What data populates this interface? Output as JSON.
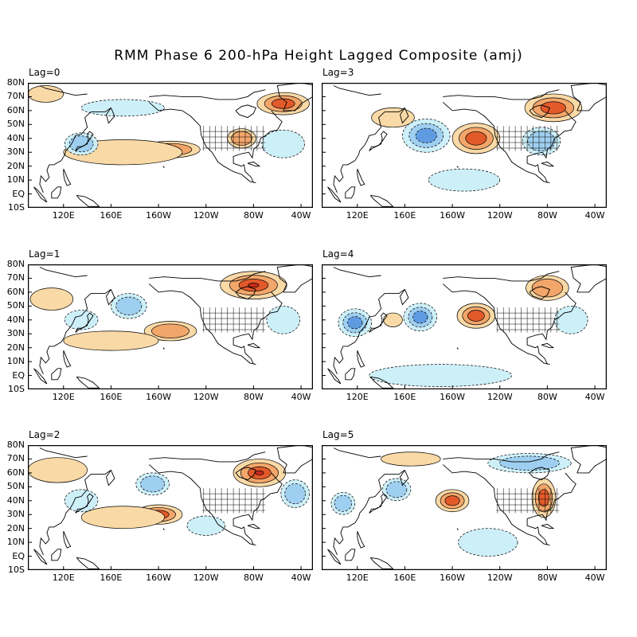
{
  "title": "RMM Phase 6 200-hPa Height Lagged Composite (amj)",
  "colors": {
    "positive_light": "#f9d9a6",
    "positive_mid": "#f2a66a",
    "positive_strong": "#e35a2a",
    "positive_max": "#c8291a",
    "negative_light": "#cdeff8",
    "negative_mid": "#9fcff0",
    "negative_strong": "#5f9be0",
    "land_outline": "#000000"
  },
  "latitude_labels": [
    "80N",
    "70N",
    "60N",
    "50N",
    "40N",
    "30N",
    "20N",
    "10N",
    "EQ",
    "10S"
  ],
  "longitude_labels": [
    "120E",
    "160E",
    "160W",
    "120W",
    "80W",
    "40W"
  ],
  "panels": [
    {
      "id": "lag0",
      "label": "Lag=0",
      "anomalies": [
        {
          "sign": "pos",
          "level": 3,
          "lon": -55,
          "lat": 65,
          "rx": 22,
          "ry": 8
        },
        {
          "sign": "pos",
          "level": 2,
          "lon": -90,
          "lat": 40,
          "rx": 12,
          "ry": 7
        },
        {
          "sign": "pos",
          "level": 2,
          "lon": -150,
          "lat": 32,
          "rx": 25,
          "ry": 6
        },
        {
          "sign": "pos",
          "level": 1,
          "lon": 170,
          "lat": 30,
          "rx": 50,
          "ry": 9
        },
        {
          "sign": "pos",
          "level": 1,
          "lon": 105,
          "lat": 72,
          "rx": 15,
          "ry": 6
        },
        {
          "sign": "neg",
          "level": 2,
          "lon": 135,
          "lat": 36,
          "rx": 14,
          "ry": 8
        },
        {
          "sign": "neg",
          "level": 1,
          "lon": -55,
          "lat": 36,
          "rx": 18,
          "ry": 10
        },
        {
          "sign": "neg",
          "level": 1,
          "lon": 170,
          "lat": 62,
          "rx": 35,
          "ry": 6
        }
      ]
    },
    {
      "id": "lag3",
      "label": "Lag=3",
      "anomalies": [
        {
          "sign": "pos",
          "level": 3,
          "lon": -140,
          "lat": 40,
          "rx": 20,
          "ry": 11
        },
        {
          "sign": "pos",
          "level": 3,
          "lon": -75,
          "lat": 62,
          "rx": 24,
          "ry": 10
        },
        {
          "sign": "pos",
          "level": 1,
          "lon": 150,
          "lat": 55,
          "rx": 18,
          "ry": 7
        },
        {
          "sign": "neg",
          "level": 3,
          "lon": 178,
          "lat": 42,
          "rx": 20,
          "ry": 12
        },
        {
          "sign": "neg",
          "level": 2,
          "lon": -85,
          "lat": 38,
          "rx": 16,
          "ry": 10
        },
        {
          "sign": "neg",
          "level": 1,
          "lon": -150,
          "lat": 10,
          "rx": 30,
          "ry": 8
        }
      ]
    },
    {
      "id": "lag1",
      "label": "Lag=1",
      "anomalies": [
        {
          "sign": "pos",
          "level": 4,
          "lon": -80,
          "lat": 65,
          "rx": 28,
          "ry": 10
        },
        {
          "sign": "pos",
          "level": 2,
          "lon": -150,
          "lat": 32,
          "rx": 22,
          "ry": 7
        },
        {
          "sign": "pos",
          "level": 1,
          "lon": 160,
          "lat": 25,
          "rx": 40,
          "ry": 7
        },
        {
          "sign": "pos",
          "level": 1,
          "lon": 110,
          "lat": 55,
          "rx": 18,
          "ry": 8
        },
        {
          "sign": "neg",
          "level": 2,
          "lon": 175,
          "lat": 50,
          "rx": 15,
          "ry": 9
        },
        {
          "sign": "neg",
          "level": 1,
          "lon": 135,
          "lat": 40,
          "rx": 14,
          "ry": 7
        },
        {
          "sign": "neg",
          "level": 1,
          "lon": -55,
          "lat": 40,
          "rx": 14,
          "ry": 10
        }
      ]
    },
    {
      "id": "lag4",
      "label": "Lag=4",
      "anomalies": [
        {
          "sign": "pos",
          "level": 3,
          "lon": -140,
          "lat": 43,
          "rx": 16,
          "ry": 9
        },
        {
          "sign": "pos",
          "level": 2,
          "lon": -80,
          "lat": 63,
          "rx": 18,
          "ry": 9
        },
        {
          "sign": "pos",
          "level": 1,
          "lon": 150,
          "lat": 40,
          "rx": 8,
          "ry": 5
        },
        {
          "sign": "neg",
          "level": 3,
          "lon": 173,
          "lat": 42,
          "rx": 14,
          "ry": 10
        },
        {
          "sign": "neg",
          "level": 3,
          "lon": 118,
          "lat": 38,
          "rx": 14,
          "ry": 10
        },
        {
          "sign": "neg",
          "level": 1,
          "lon": -170,
          "lat": 0,
          "rx": 60,
          "ry": 8
        },
        {
          "sign": "neg",
          "level": 1,
          "lon": -60,
          "lat": 40,
          "rx": 14,
          "ry": 10
        }
      ]
    },
    {
      "id": "lag2",
      "label": "Lag=2",
      "anomalies": [
        {
          "sign": "pos",
          "level": 4,
          "lon": -75,
          "lat": 60,
          "rx": 22,
          "ry": 10
        },
        {
          "sign": "pos",
          "level": 3,
          "lon": -160,
          "lat": 30,
          "rx": 20,
          "ry": 7
        },
        {
          "sign": "pos",
          "level": 1,
          "lon": 170,
          "lat": 28,
          "rx": 35,
          "ry": 8
        },
        {
          "sign": "pos",
          "level": 1,
          "lon": 115,
          "lat": 62,
          "rx": 25,
          "ry": 9
        },
        {
          "sign": "neg",
          "level": 2,
          "lon": -165,
          "lat": 52,
          "rx": 14,
          "ry": 8
        },
        {
          "sign": "neg",
          "level": 1,
          "lon": 135,
          "lat": 40,
          "rx": 14,
          "ry": 8
        },
        {
          "sign": "neg",
          "level": 2,
          "lon": -45,
          "lat": 45,
          "rx": 12,
          "ry": 10
        },
        {
          "sign": "neg",
          "level": 1,
          "lon": -120,
          "lat": 22,
          "rx": 16,
          "ry": 7
        }
      ]
    },
    {
      "id": "lag5",
      "label": "Lag=5",
      "anomalies": [
        {
          "sign": "pos",
          "level": 3,
          "lon": -160,
          "lat": 40,
          "rx": 14,
          "ry": 8
        },
        {
          "sign": "pos",
          "level": 3,
          "lon": -83,
          "lat": 42,
          "rx": 10,
          "ry": 14
        },
        {
          "sign": "pos",
          "level": 1,
          "lon": 165,
          "lat": 70,
          "rx": 25,
          "ry": 5
        },
        {
          "sign": "neg",
          "level": 2,
          "lon": -95,
          "lat": 67,
          "rx": 35,
          "ry": 7
        },
        {
          "sign": "neg",
          "level": 2,
          "lon": 153,
          "lat": 48,
          "rx": 12,
          "ry": 8
        },
        {
          "sign": "neg",
          "level": 2,
          "lon": 108,
          "lat": 38,
          "rx": 10,
          "ry": 8
        },
        {
          "sign": "neg",
          "level": 1,
          "lon": -130,
          "lat": 10,
          "rx": 25,
          "ry": 10
        }
      ]
    }
  ]
}
